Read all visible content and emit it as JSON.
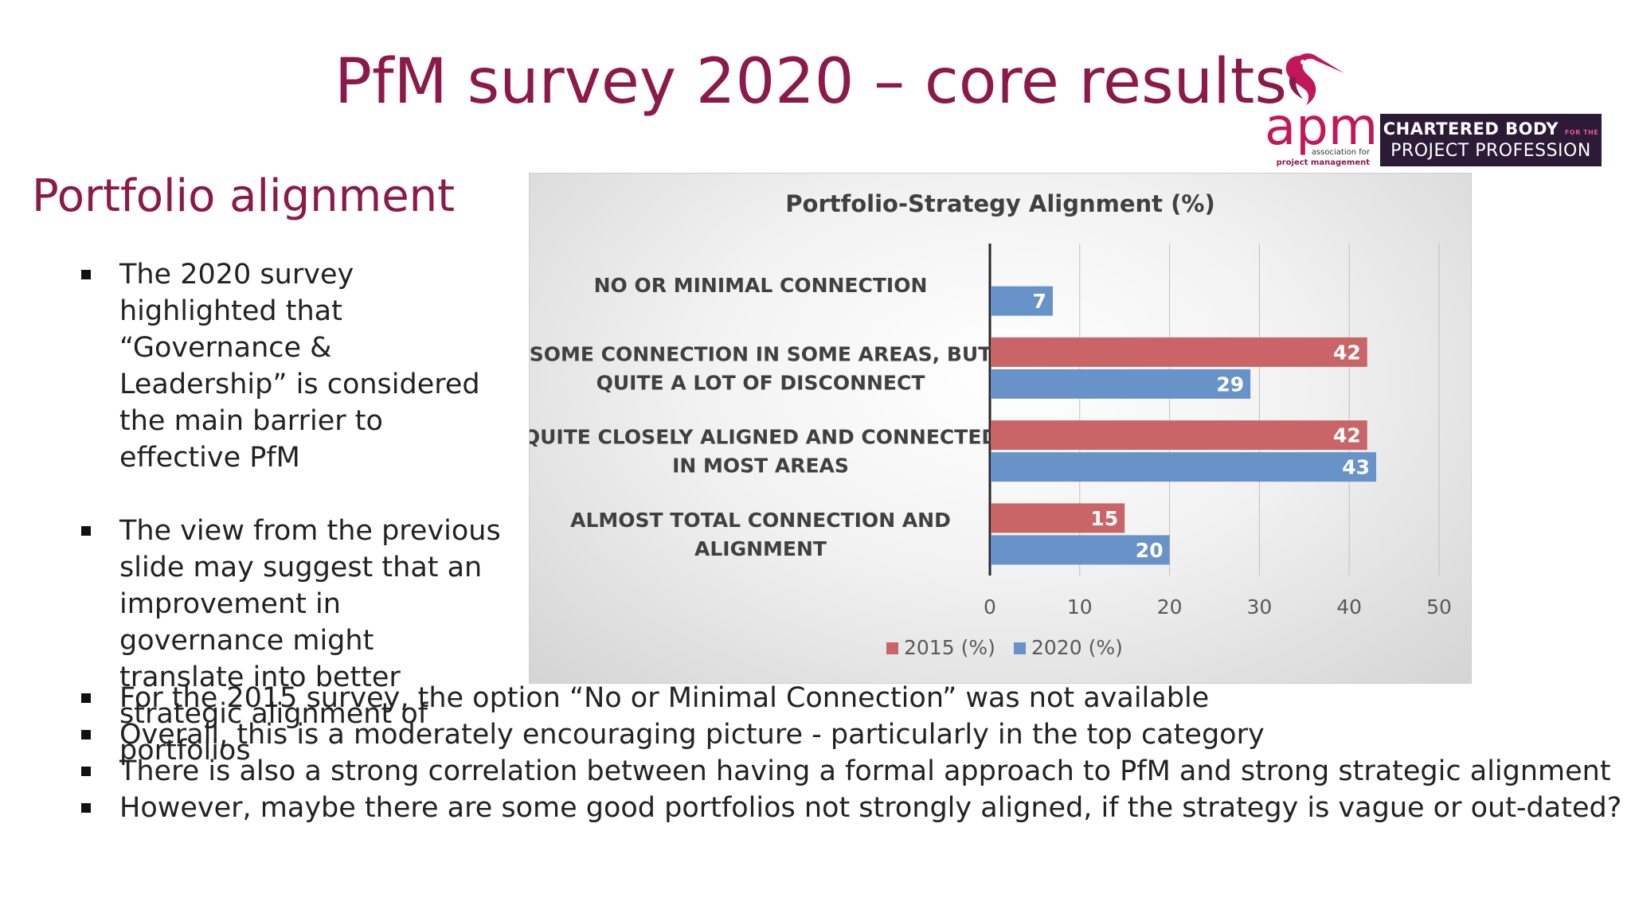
{
  "slide": {
    "title": "PfM survey 2020 – core results",
    "section_heading": "Portfolio alignment",
    "left_bullets": [
      "The 2020 survey highlighted that “Governance & Leadership” is considered the main barrier to effective PfM",
      "The view from the previous slide may suggest that an improvement in governance might translate into better strategic alignment of portfolios"
    ],
    "bottom_bullets": [
      "For the 2015 survey, the option “No or Minimal Connection” was not available",
      "Overall, this is a moderately encouraging picture - particularly in the top category",
      "There is also a strong correlation between having a formal approach to PfM and strong strategic alignment",
      "However, maybe there are some good portfolios not strongly aligned, if the strategy is vague or out-dated?"
    ]
  },
  "branding": {
    "logo_text": "apm",
    "logo_subtext_1": "association for",
    "logo_subtext_2": "project management",
    "badge_line_1": "CHARTERED BODY",
    "badge_small": "FOR THE",
    "badge_line_2": "PROJECT PROFESSION",
    "logo_icon": "heron-bird-icon",
    "brand_color": "#c2185b",
    "badge_color": "#2c1a36"
  },
  "chart_data": {
    "type": "bar",
    "orientation": "horizontal",
    "title": "Portfolio-Strategy Alignment (%)",
    "categories": [
      [
        "NO OR MINIMAL CONNECTION"
      ],
      [
        "SOME CONNECTION IN SOME AREAS, BUT",
        "QUITE A LOT OF DISCONNECT"
      ],
      [
        "QUITE CLOSELY ALIGNED AND CONNECTED",
        "IN MOST AREAS"
      ],
      [
        "ALMOST TOTAL CONNECTION AND",
        "ALIGNMENT"
      ]
    ],
    "series": [
      {
        "name": "2015 (%)",
        "color": "#c96467",
        "values": [
          null,
          42,
          42,
          15
        ]
      },
      {
        "name": "2020 (%)",
        "color": "#6793c9",
        "values": [
          7,
          29,
          43,
          20
        ]
      }
    ],
    "xlim": [
      0,
      50
    ],
    "xticks": [
      0,
      10,
      20,
      30,
      40,
      50
    ],
    "grid": true,
    "legend_position": "bottom",
    "data_labels": true
  }
}
